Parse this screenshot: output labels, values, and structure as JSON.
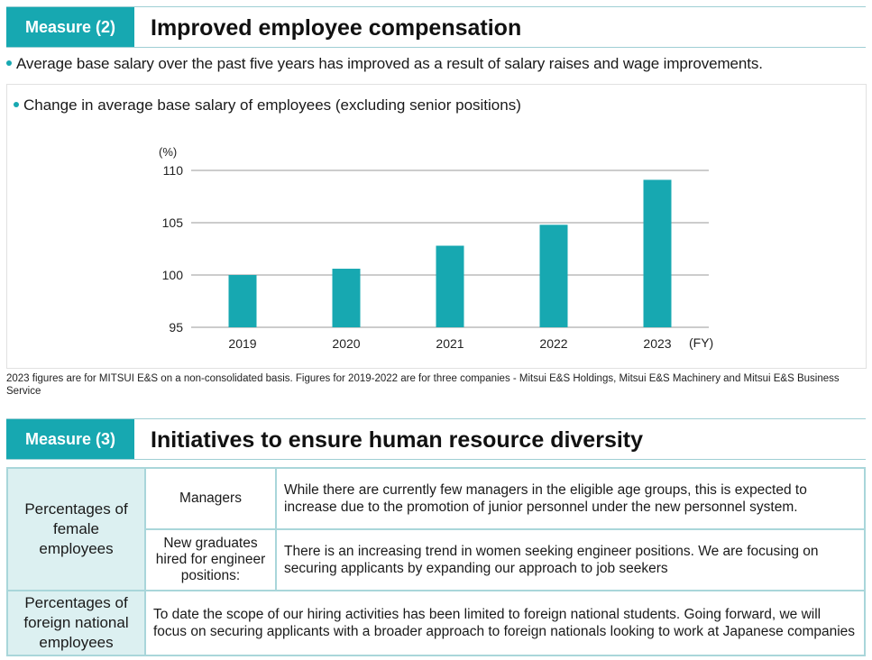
{
  "measure2": {
    "badge": "Measure (2)",
    "title": "Improved employee compensation",
    "bullet": "Average base salary over the past five years has improved as a result of salary raises and wage improvements."
  },
  "chart_panel": {
    "title": "Change in average base salary of employees (excluding senior positions)"
  },
  "chart_data": {
    "type": "bar",
    "categories": [
      "2019",
      "2020",
      "2021",
      "2022",
      "2023"
    ],
    "values": [
      100.0,
      100.6,
      102.8,
      104.8,
      109.1
    ],
    "ylim": [
      95,
      110
    ],
    "yticks": [
      "110",
      "105",
      "100",
      "95"
    ],
    "ytick_values": [
      110,
      105,
      100,
      95
    ],
    "y_unit": "(%)",
    "x_unit": "(FY)",
    "grid": true,
    "bar_color": "#17a8b1"
  },
  "footnote": "2023 figures are for MITSUI E&S on a non-consolidated basis. Figures for 2019-2022 are for three companies - Mitsui E&S Holdings, Mitsui E&S Machinery and Mitsui E&S Business Service",
  "measure3": {
    "badge": "Measure (3)",
    "title": "Initiatives to ensure human resource diversity"
  },
  "table": {
    "female_category": "Percentages of female employees",
    "managers_label": "Managers",
    "managers_text": "While there are currently few managers in the eligible age groups, this is expected to increase due to the promotion of junior personnel under the new personnel system.",
    "graduates_label": "New graduates hired for engineer positions:",
    "graduates_text": "There is an increasing trend in women seeking engineer positions. We are focusing on securing applicants by expanding our approach to job seekers",
    "foreign_category": "Percentages of foreign national employees",
    "foreign_text": "To date the scope of our hiring activities has been limited to foreign national students. Going forward, we will focus on securing applicants with a broader approach to foreign nationals looking to work at Japanese companies"
  },
  "colors": {
    "accent": "#17a8b1",
    "category_bg": "#dcf0f1",
    "border": "#a9d6da"
  }
}
